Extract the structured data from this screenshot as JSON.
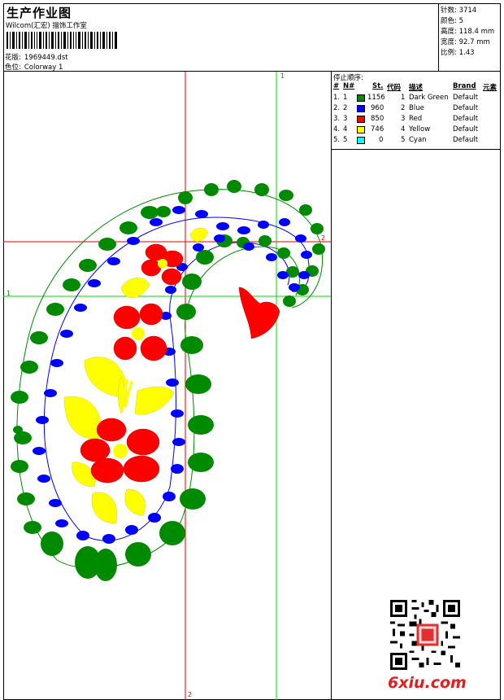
{
  "header": {
    "title": "生产作业图",
    "studio": "Wilcom(汇宏) 描饰工作室",
    "design_label": "花版:",
    "design_file": "1969449.dst",
    "colorway_label": "色位:",
    "colorway": "Colorway 1"
  },
  "stats": [
    {
      "label": "针数:",
      "value": "3714"
    },
    {
      "label": "颜色:",
      "value": "5"
    },
    {
      "label": "高度:",
      "value": "118.4 mm"
    },
    {
      "label": "宽度:",
      "value": "92.7 mm"
    },
    {
      "label": "比例:",
      "value": "1.43"
    }
  ],
  "sequence": {
    "title": "停止顺序:",
    "columns": [
      "#",
      "N#",
      "St.",
      "代码",
      "描述",
      "Brand",
      "元素"
    ],
    "rows": [
      {
        "num": "1.",
        "n": "1",
        "color": "#008a00",
        "stitches": "1156",
        "code": "1",
        "desc": "Dark Green",
        "brand": "Default"
      },
      {
        "num": "2.",
        "n": "2",
        "color": "#0000ff",
        "stitches": "960",
        "code": "2",
        "desc": "Blue",
        "brand": "Default"
      },
      {
        "num": "3.",
        "n": "3",
        "color": "#ff0000",
        "stitches": "850",
        "code": "3",
        "desc": "Red",
        "brand": "Default"
      },
      {
        "num": "4.",
        "n": "4",
        "color": "#ffff00",
        "stitches": "746",
        "code": "4",
        "desc": "Yellow",
        "brand": "Default"
      },
      {
        "num": "5.",
        "n": "5",
        "color": "#00ffff",
        "stitches": "0",
        "code": "5",
        "desc": "Cyan",
        "brand": "Default"
      }
    ]
  },
  "guides": {
    "green_label": "1",
    "red_label": "2"
  },
  "watermark": "6xiu.com"
}
